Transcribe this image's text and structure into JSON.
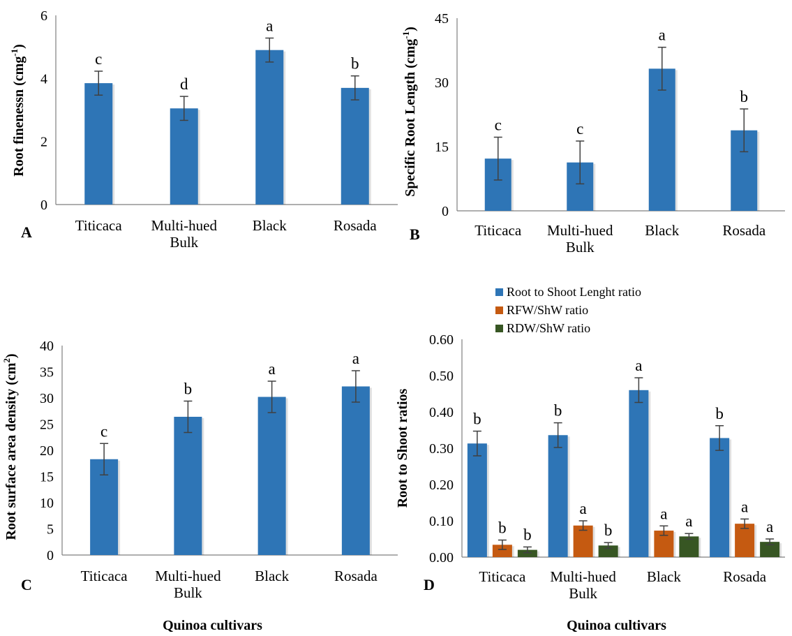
{
  "colors": {
    "blue": "#2e75b6",
    "orange": "#c55a11",
    "green": "#375623",
    "axis": "#7f7f7f",
    "error": "#404040"
  },
  "chart_data": [
    {
      "panel": "A",
      "type": "bar",
      "categories": [
        "Titicaca",
        "Multi-hued\nBulk",
        "Black",
        "Rosada"
      ],
      "series": [
        {
          "values": [
            3.85,
            3.05,
            4.9,
            3.7
          ],
          "errors": [
            0.38,
            0.38,
            0.38,
            0.38
          ],
          "letters": [
            "c",
            "d",
            "a",
            "b"
          ],
          "color": "#2e75b6"
        }
      ],
      "ylabel": "Root finenessn (cmg-1)",
      "xlabel": "",
      "ylim": [
        0,
        6
      ],
      "yticks": [
        "0",
        "2",
        "4",
        "6"
      ]
    },
    {
      "panel": "B",
      "type": "bar",
      "categories": [
        "Titicaca",
        "Multi-hued\nBulk",
        "Black",
        "Rosada"
      ],
      "series": [
        {
          "values": [
            12.2,
            11.3,
            33.2,
            18.8
          ],
          "errors": [
            5.0,
            5.0,
            5.0,
            5.0
          ],
          "letters": [
            "c",
            "c",
            "a",
            "b"
          ],
          "color": "#2e75b6"
        }
      ],
      "ylabel": "Specific Root Length (cmg-1)",
      "xlabel": "",
      "ylim": [
        0,
        45
      ],
      "yticks": [
        "0",
        "15",
        "30",
        "45"
      ]
    },
    {
      "panel": "C",
      "type": "bar",
      "categories": [
        "Titicaca",
        "Multi-hued\nBulk",
        "Black",
        "Rosada"
      ],
      "series": [
        {
          "values": [
            18.3,
            26.4,
            30.2,
            32.2
          ],
          "errors": [
            3.0,
            3.0,
            3.0,
            3.0
          ],
          "letters": [
            "c",
            "b",
            "a",
            "a"
          ],
          "color": "#2e75b6"
        }
      ],
      "ylabel": "Root surface area density (cm2)",
      "xlabel": "Quinoa cultivars",
      "ylim": [
        0,
        40
      ],
      "yticks": [
        "0",
        "5",
        "10",
        "15",
        "20",
        "25",
        "30",
        "35",
        "40"
      ]
    },
    {
      "panel": "D",
      "type": "bar",
      "categories": [
        "Titicaca",
        "Multi-hued\nBulk",
        "Black",
        "Rosada"
      ],
      "series": [
        {
          "name": "Root to Shoot Lenght ratio",
          "values": [
            0.313,
            0.336,
            0.46,
            0.328
          ],
          "errors": [
            0.034,
            0.034,
            0.034,
            0.034
          ],
          "letters": [
            "b",
            "b",
            "a",
            "b"
          ],
          "color": "#2e75b6"
        },
        {
          "name": "RFW/ShW ratio",
          "values": [
            0.034,
            0.087,
            0.073,
            0.092
          ],
          "errors": [
            0.013,
            0.013,
            0.013,
            0.013
          ],
          "letters": [
            "b",
            "a",
            "a",
            "a"
          ],
          "color": "#c55a11"
        },
        {
          "name": "RDW/ShW ratio",
          "values": [
            0.02,
            0.032,
            0.057,
            0.042
          ],
          "errors": [
            0.008,
            0.008,
            0.008,
            0.008
          ],
          "letters": [
            "b",
            "b",
            "a",
            "a"
          ],
          "color": "#375623"
        }
      ],
      "ylabel": "Root to Shoot  ratios",
      "xlabel": "Quinoa cultivars",
      "ylim": [
        0,
        0.6
      ],
      "yticks": [
        "0.00",
        "0.10",
        "0.20",
        "0.30",
        "0.40",
        "0.50",
        "0.60"
      ],
      "legend": "top"
    }
  ]
}
